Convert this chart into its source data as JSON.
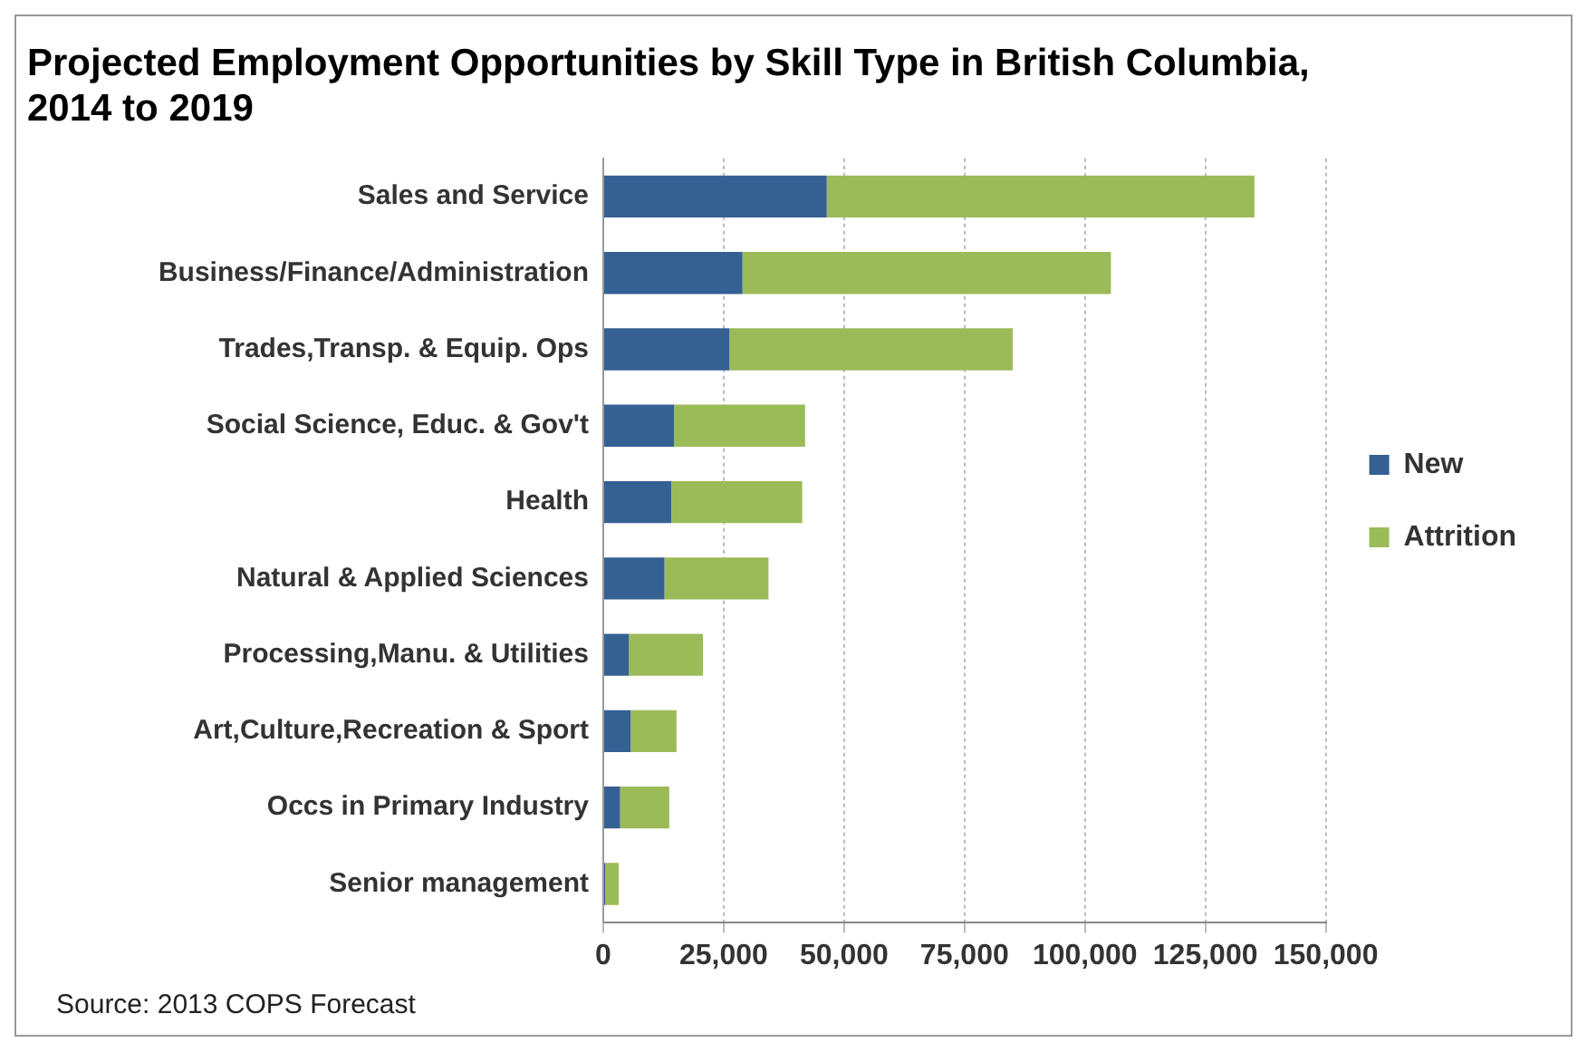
{
  "chart_data": {
    "type": "bar",
    "orientation": "horizontal",
    "stacked": true,
    "title": "Projected Employment Opportunities by Skill Type in British Columbia, 2014 to 2019",
    "categories": [
      "Sales and Service",
      "Business/Finance/Administration",
      "Trades,Transp. & Equip. Ops",
      "Social Science, Educ. & Gov't",
      "Health",
      "Natural & Applied Sciences",
      "Processing,Manu. & Utilities",
      "Art,Culture,Recreation & Sport",
      "Occs in Primary Industry",
      "Senior management"
    ],
    "series": [
      {
        "name": "New",
        "color": "#356092",
        "values": [
          46400,
          28900,
          26200,
          14700,
          14100,
          12700,
          5300,
          5700,
          3500,
          400
        ]
      },
      {
        "name": "Attrition",
        "color": "#9bbb59",
        "values": [
          88800,
          76500,
          58800,
          27200,
          27200,
          21600,
          15400,
          9500,
          10200,
          2800
        ]
      }
    ],
    "xlim": [
      0,
      150000
    ],
    "xticks": [
      {
        "value": 0,
        "label": "0"
      },
      {
        "value": 25000,
        "label": "25,000"
      },
      {
        "value": 50000,
        "label": "50,000"
      },
      {
        "value": 75000,
        "label": "75,000"
      },
      {
        "value": 100000,
        "label": "100,000"
      },
      {
        "value": 125000,
        "label": "125,000"
      },
      {
        "value": 150000,
        "label": "150,000"
      }
    ],
    "grid": "x",
    "legend": "right",
    "annotations": [
      "Source: 2013 COPS Forecast"
    ]
  }
}
